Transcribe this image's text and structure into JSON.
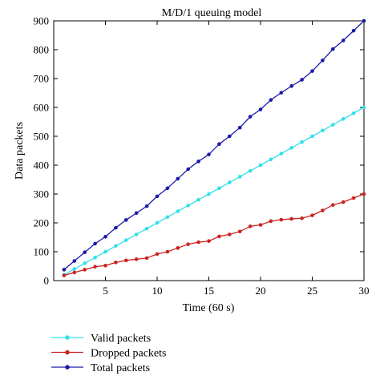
{
  "chart_data": {
    "type": "line",
    "title": "M/D/1 queuing model",
    "xlabel": "Time (60 s)",
    "ylabel": "Data packets",
    "xlim": [
      0,
      30
    ],
    "ylim": [
      0,
      900
    ],
    "xticks": [
      5,
      10,
      15,
      20,
      25,
      30
    ],
    "yticks": [
      0,
      100,
      200,
      300,
      400,
      500,
      600,
      700,
      800,
      900
    ],
    "x": [
      1,
      2,
      3,
      4,
      5,
      6,
      7,
      8,
      9,
      10,
      11,
      12,
      13,
      14,
      15,
      16,
      17,
      18,
      19,
      20,
      21,
      22,
      23,
      24,
      25,
      26,
      27,
      28,
      29,
      30
    ],
    "legend_placement": "below plot, left",
    "grid": false,
    "series": [
      {
        "name": "Valid packets",
        "color": "#33e0e8",
        "values": [
          20,
          40,
          60,
          80,
          100,
          120,
          140,
          160,
          180,
          200,
          220,
          240,
          260,
          280,
          300,
          320,
          340,
          360,
          380,
          400,
          420,
          440,
          460,
          480,
          500,
          520,
          540,
          560,
          580,
          600
        ]
      },
      {
        "name": "Dropped packets",
        "color": "#cc2222",
        "values": [
          18,
          28,
          38,
          48,
          52,
          63,
          70,
          74,
          78,
          92,
          100,
          113,
          126,
          133,
          137,
          153,
          160,
          170,
          188,
          193,
          206,
          211,
          214,
          216,
          226,
          243,
          262,
          272,
          286,
          300
        ]
      },
      {
        "name": "Total packets",
        "color": "#1a1aa8",
        "values": [
          38,
          68,
          98,
          128,
          152,
          183,
          210,
          234,
          258,
          292,
          320,
          353,
          386,
          413,
          437,
          473,
          500,
          530,
          568,
          593,
          626,
          651,
          674,
          696,
          726,
          763,
          802,
          832,
          866,
          900
        ]
      }
    ]
  }
}
